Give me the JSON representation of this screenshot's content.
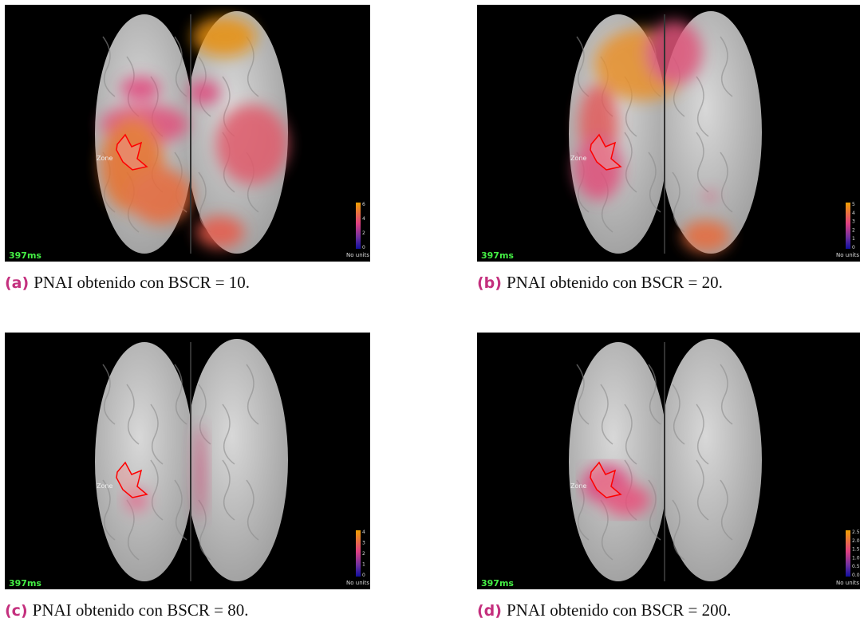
{
  "panels": [
    {
      "label": "(a)",
      "caption": "PNAI obtenido con BSCR = 10.",
      "time": "397ms",
      "zone": "Zone",
      "units": "No units",
      "colorbar_ticks": [
        "6",
        "4",
        "2",
        "0"
      ]
    },
    {
      "label": "(b)",
      "caption": "PNAI obtenido con BSCR = 20.",
      "time": "397ms",
      "zone": "Zone",
      "units": "No units",
      "colorbar_ticks": [
        "5",
        "4",
        "3",
        "2",
        "1",
        "0"
      ]
    },
    {
      "label": "(c)",
      "caption": "PNAI obtenido con BSCR = 80.",
      "time": "397ms",
      "zone": "Zone",
      "units": "No units",
      "colorbar_ticks": [
        "4",
        "3",
        "2",
        "1",
        "0"
      ]
    },
    {
      "label": "(d)",
      "caption": "PNAI obtenido con BSCR = 200.",
      "time": "397ms",
      "zone": "Zone",
      "units": "No units",
      "colorbar_ticks": [
        "2.5",
        "2.0",
        "1.5",
        "1.0",
        "0.5",
        "0.0"
      ]
    }
  ]
}
